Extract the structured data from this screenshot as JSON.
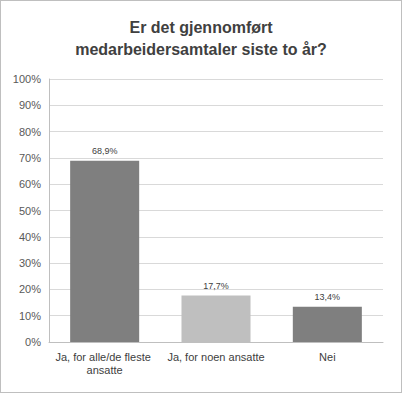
{
  "chart_data": {
    "type": "bar",
    "title": "Er det gjennomført\nmedarbeidersamtaler siste to år?",
    "categories": [
      "Ja, for alle/de fleste ansatte",
      "Ja, for noen ansatte",
      "Nei"
    ],
    "values": [
      68.9,
      17.7,
      13.4
    ],
    "value_labels": [
      "68,9%",
      "17,7%",
      "13,4%"
    ],
    "colors": [
      "#7f7f7f",
      "#bfbfbf",
      "#7f7f7f"
    ],
    "ylim": [
      0,
      100
    ],
    "yticks": [
      {
        "value": 0,
        "label": "0%"
      },
      {
        "value": 10,
        "label": "10%"
      },
      {
        "value": 20,
        "label": "20%"
      },
      {
        "value": 30,
        "label": "30%"
      },
      {
        "value": 40,
        "label": "40%"
      },
      {
        "value": 50,
        "label": "50%"
      },
      {
        "value": 60,
        "label": "60%"
      },
      {
        "value": 70,
        "label": "70%"
      },
      {
        "value": 80,
        "label": "80%"
      },
      {
        "value": 90,
        "label": "90%"
      },
      {
        "value": 100,
        "label": "100%"
      }
    ],
    "grid": true,
    "data_labels": true
  }
}
